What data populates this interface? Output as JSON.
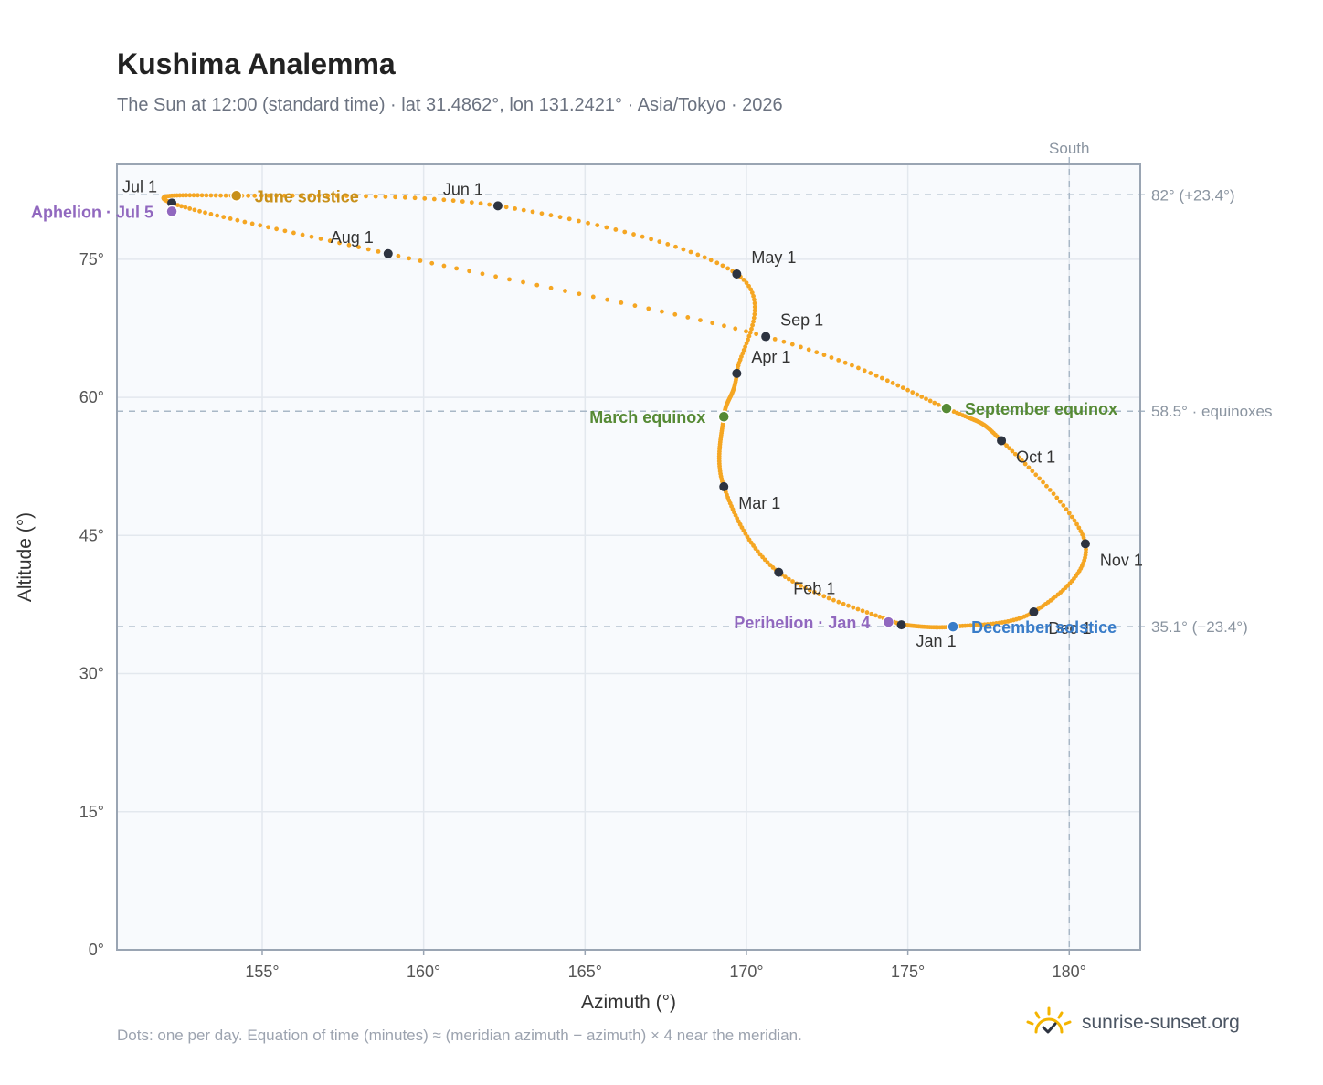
{
  "title": "Kushima Analemma",
  "subtitle": "The Sun at 12:00 (standard time) · lat 31.4862°, lon 131.2421° · Asia/Tokyo · 2026",
  "footnote": "Dots: one per day. Equation of time (minutes) ≈ (meridian azimuth − azimuth) × 4 near the meridian.",
  "brand": {
    "name": "sunrise-sunset.org",
    "icon": "sun-check-icon"
  },
  "colors": {
    "curve": "#f5a623",
    "month_dot": "#2d3340",
    "june": "#c8901a",
    "equinox": "#568a35",
    "december": "#3a7dc9",
    "apsis": "#9168bf",
    "reference": "#a9b8c7",
    "plot_bg": "#f8fafd",
    "grid": "#e3e8ee"
  },
  "chart_data": {
    "type": "scatter",
    "xlabel": "Azimuth (°)",
    "ylabel": "Altitude (°)",
    "xlim": [
      150.5,
      182.2
    ],
    "ylim": [
      0,
      85.3
    ],
    "xticks": [
      155,
      160,
      165,
      170,
      175,
      180
    ],
    "yticks": [
      0,
      15,
      30,
      45,
      60,
      75
    ],
    "x_unit": "°",
    "y_unit": "°",
    "grid": true,
    "south_line": {
      "label": "South",
      "azimuth": 180
    },
    "reference_lines": [
      {
        "altitude": 82.0,
        "label": "82° (+23.4°)"
      },
      {
        "altitude": 58.5,
        "label": "58.5° · equinoxes"
      },
      {
        "altitude": 35.1,
        "label": "35.1° (−23.4°)"
      }
    ],
    "path": [
      {
        "date": "Jan 1",
        "az": 174.8,
        "alt": 35.3
      },
      {
        "date": "Feb 1",
        "az": 171.0,
        "alt": 41.0
      },
      {
        "date": "Mar 1",
        "az": 169.3,
        "alt": 50.3
      },
      {
        "date": "Mar 20",
        "az": 169.3,
        "alt": 57.9
      },
      {
        "date": "Apr 1",
        "az": 169.7,
        "alt": 62.6
      },
      {
        "date": "May 1",
        "az": 169.7,
        "alt": 73.4
      },
      {
        "date": "Jun 1",
        "az": 162.3,
        "alt": 80.8
      },
      {
        "date": "Jun 21",
        "az": 154.2,
        "alt": 81.9
      },
      {
        "date": "Jul 1",
        "az": 152.2,
        "alt": 81.1
      },
      {
        "date": "Aug 1",
        "az": 158.9,
        "alt": 75.6
      },
      {
        "date": "Sep 1",
        "az": 170.6,
        "alt": 66.6
      },
      {
        "date": "Sep 23",
        "az": 176.2,
        "alt": 58.8
      },
      {
        "date": "Oct 1",
        "az": 177.9,
        "alt": 55.3
      },
      {
        "date": "Nov 1",
        "az": 180.5,
        "alt": 44.1
      },
      {
        "date": "Dec 1",
        "az": 178.9,
        "alt": 36.7
      },
      {
        "date": "Dec 21",
        "az": 176.4,
        "alt": 35.1
      },
      {
        "date": "Jan 1",
        "az": 174.8,
        "alt": 35.3
      }
    ],
    "month_markers": [
      {
        "label": "Jan 1",
        "az": 174.8,
        "alt": 35.3,
        "pos": "below-right"
      },
      {
        "label": "Feb 1",
        "az": 171.0,
        "alt": 41.0,
        "pos": "below-right"
      },
      {
        "label": "Mar 1",
        "az": 169.3,
        "alt": 50.3,
        "pos": "below-right"
      },
      {
        "label": "Apr 1",
        "az": 169.7,
        "alt": 62.6,
        "pos": "above-right"
      },
      {
        "label": "May 1",
        "az": 169.7,
        "alt": 73.4,
        "pos": "above-right"
      },
      {
        "label": "Jun 1",
        "az": 162.3,
        "alt": 80.8,
        "pos": "above-left"
      },
      {
        "label": "Jul 1",
        "az": 152.2,
        "alt": 81.1,
        "pos": "above-left"
      },
      {
        "label": "Aug 1",
        "az": 158.9,
        "alt": 75.6,
        "pos": "above-left"
      },
      {
        "label": "Sep 1",
        "az": 170.6,
        "alt": 66.6,
        "pos": "above-right"
      },
      {
        "label": "Oct 1",
        "az": 177.9,
        "alt": 55.3,
        "pos": "below-right"
      },
      {
        "label": "Nov 1",
        "az": 180.5,
        "alt": 44.1,
        "pos": "below-right"
      },
      {
        "label": "Dec 1",
        "az": 178.9,
        "alt": 36.7,
        "pos": "below-right"
      }
    ],
    "events": [
      {
        "label": "June solstice",
        "az": 154.2,
        "alt": 81.9,
        "color": "june",
        "pos": "right"
      },
      {
        "label": "March equinox",
        "az": 169.3,
        "alt": 57.9,
        "color": "equinox",
        "pos": "left"
      },
      {
        "label": "September equinox",
        "az": 176.2,
        "alt": 58.8,
        "color": "equinox",
        "pos": "right"
      },
      {
        "label": "December solstice",
        "az": 176.4,
        "alt": 35.1,
        "color": "december",
        "pos": "right"
      },
      {
        "label": "Aphelion · Jul 5",
        "az": 152.2,
        "alt": 80.2,
        "color": "apsis",
        "pos": "left"
      },
      {
        "label": "Perihelion · Jan 4",
        "az": 174.4,
        "alt": 35.6,
        "color": "apsis",
        "pos": "left"
      }
    ]
  }
}
